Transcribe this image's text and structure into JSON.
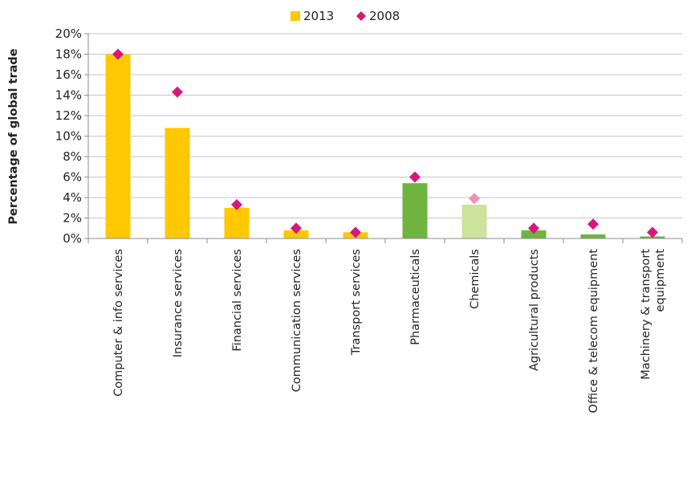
{
  "chart_data": {
    "type": "bar",
    "ylabel": "Percentage of global trade",
    "xlabel": "",
    "ylim": [
      0,
      20
    ],
    "ytick_step": 2,
    "ytick_suffix": "%",
    "grid": true,
    "legend_position": "top-center",
    "categories": [
      {
        "lines": [
          "Computer & info services"
        ]
      },
      {
        "lines": [
          "Insurance services"
        ]
      },
      {
        "lines": [
          "Financial services"
        ]
      },
      {
        "lines": [
          "Communication services"
        ]
      },
      {
        "lines": [
          "Transport services"
        ]
      },
      {
        "lines": [
          "Pharmaceuticals"
        ]
      },
      {
        "lines": [
          "Chemicals"
        ]
      },
      {
        "lines": [
          "Agricultural products"
        ]
      },
      {
        "lines": [
          "Office & telecom equipment"
        ]
      },
      {
        "lines": [
          "Machinery & transport",
          "equipment"
        ]
      }
    ],
    "series": [
      {
        "name": "2013",
        "kind": "bar",
        "legend_color": "#FFC800",
        "values": [
          18.0,
          10.8,
          3.0,
          0.8,
          0.6,
          5.4,
          3.3,
          0.8,
          0.4,
          0.2
        ],
        "colors": [
          "#FFC800",
          "#FFC800",
          "#FFC800",
          "#FFC800",
          "#FFC800",
          "#6EB43F",
          "#CDE29A",
          "#6EB43F",
          "#6EB43F",
          "#6EB43F"
        ]
      },
      {
        "name": "2008",
        "kind": "marker",
        "legend_color": "#D6177E",
        "values": [
          18.0,
          14.3,
          3.3,
          1.0,
          0.6,
          6.0,
          3.9,
          1.0,
          1.4,
          0.6
        ],
        "colors": [
          "#D6177E",
          "#D6177E",
          "#D6177E",
          "#D6177E",
          "#D6177E",
          "#D6177E",
          "#F08FB8",
          "#D6177E",
          "#D6177E",
          "#D6177E"
        ]
      }
    ]
  }
}
